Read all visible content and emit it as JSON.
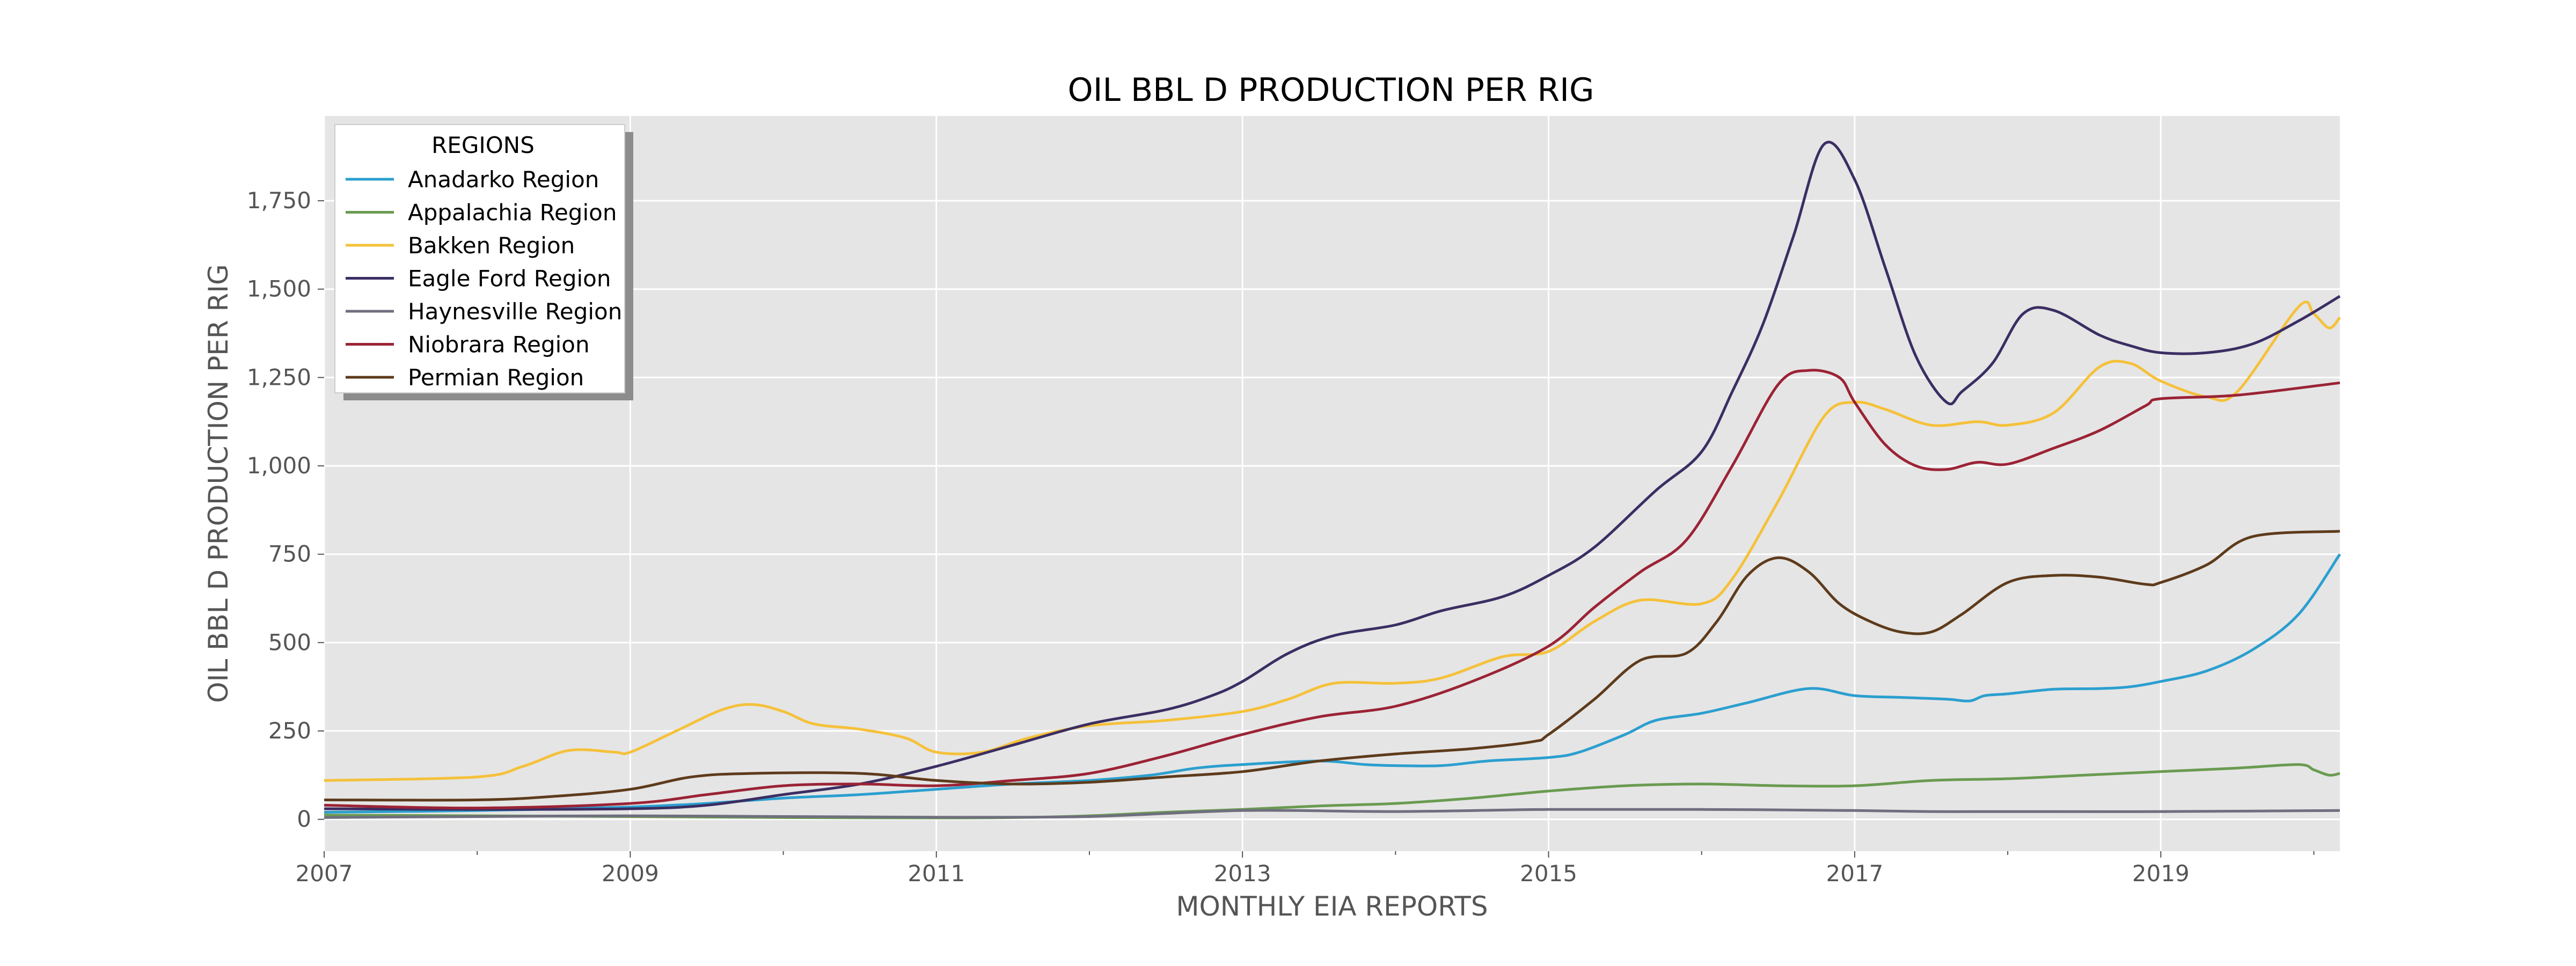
{
  "chart_data": {
    "type": "line",
    "title": "OIL BBL D PRODUCTION PER RIG",
    "xlabel": "MONTHLY EIA REPORTS",
    "ylabel": "OIL BBL D PRODUCTION PER RIG",
    "xlim": [
      2007.0,
      2020.17
    ],
    "ylim": [
      -90,
      1990
    ],
    "x_ticks": [
      2007,
      2009,
      2011,
      2013,
      2015,
      2017,
      2019
    ],
    "x_tick_labels": [
      "2007",
      "2009",
      "2011",
      "2013",
      "2015",
      "2017",
      "2019"
    ],
    "y_ticks": [
      0,
      250,
      500,
      750,
      1000,
      1250,
      1500,
      1750
    ],
    "y_tick_labels": [
      "0",
      "250",
      "500",
      "750",
      "1,000",
      "1,250",
      "1,500",
      "1,750"
    ],
    "grid": true,
    "legend_title": "REGIONS",
    "legend_position": "upper-left",
    "background": "#e5e5e5",
    "series": [
      {
        "name": "Anadarko Region",
        "color": "#2b9fcf",
        "points": [
          [
            2007,
            20
          ],
          [
            2008,
            25
          ],
          [
            2009,
            35
          ],
          [
            2009.5,
            45
          ],
          [
            2010,
            60
          ],
          [
            2010.5,
            70
          ],
          [
            2011,
            85
          ],
          [
            2011.5,
            100
          ],
          [
            2012,
            110
          ],
          [
            2012.4,
            125
          ],
          [
            2012.7,
            145
          ],
          [
            2013,
            155
          ],
          [
            2013.5,
            165
          ],
          [
            2013.8,
            155
          ],
          [
            2014,
            152
          ],
          [
            2014.3,
            152
          ],
          [
            2014.6,
            165
          ],
          [
            2015,
            175
          ],
          [
            2015.2,
            190
          ],
          [
            2015.5,
            240
          ],
          [
            2015.7,
            280
          ],
          [
            2016,
            300
          ],
          [
            2016.3,
            330
          ],
          [
            2016.7,
            370
          ],
          [
            2017,
            350
          ],
          [
            2017.3,
            345
          ],
          [
            2017.6,
            340
          ],
          [
            2017.75,
            335
          ],
          [
            2017.85,
            350
          ],
          [
            2018,
            355
          ],
          [
            2018.3,
            368
          ],
          [
            2018.6,
            370
          ],
          [
            2018.8,
            375
          ],
          [
            2019,
            390
          ],
          [
            2019.3,
            420
          ],
          [
            2019.6,
            480
          ],
          [
            2019.9,
            580
          ],
          [
            2020.17,
            750
          ]
        ]
      },
      {
        "name": "Appalachia Region",
        "color": "#6a9b50",
        "points": [
          [
            2007,
            12
          ],
          [
            2008,
            10
          ],
          [
            2009,
            8
          ],
          [
            2010,
            5
          ],
          [
            2011,
            4
          ],
          [
            2011.5,
            5
          ],
          [
            2012,
            10
          ],
          [
            2012.5,
            20
          ],
          [
            2013,
            28
          ],
          [
            2013.5,
            38
          ],
          [
            2014,
            45
          ],
          [
            2014.5,
            60
          ],
          [
            2015,
            80
          ],
          [
            2015.5,
            95
          ],
          [
            2016,
            100
          ],
          [
            2016.5,
            95
          ],
          [
            2017,
            95
          ],
          [
            2017.5,
            110
          ],
          [
            2018,
            115
          ],
          [
            2018.5,
            125
          ],
          [
            2019,
            135
          ],
          [
            2019.5,
            145
          ],
          [
            2019.9,
            155
          ],
          [
            2020,
            140
          ],
          [
            2020.1,
            125
          ],
          [
            2020.17,
            130
          ]
        ]
      },
      {
        "name": "Bakken Region",
        "color": "#f5c13a",
        "points": [
          [
            2007,
            110
          ],
          [
            2008,
            120
          ],
          [
            2008.3,
            150
          ],
          [
            2008.6,
            195
          ],
          [
            2008.9,
            190
          ],
          [
            2009,
            190
          ],
          [
            2009.3,
            250
          ],
          [
            2009.6,
            310
          ],
          [
            2009.8,
            325
          ],
          [
            2010,
            305
          ],
          [
            2010.2,
            270
          ],
          [
            2010.5,
            255
          ],
          [
            2010.8,
            230
          ],
          [
            2011,
            190
          ],
          [
            2011.3,
            190
          ],
          [
            2011.6,
            230
          ],
          [
            2012,
            265
          ],
          [
            2012.5,
            280
          ],
          [
            2013,
            305
          ],
          [
            2013.3,
            340
          ],
          [
            2013.6,
            385
          ],
          [
            2014,
            385
          ],
          [
            2014.3,
            400
          ],
          [
            2014.7,
            460
          ],
          [
            2015,
            475
          ],
          [
            2015.3,
            560
          ],
          [
            2015.6,
            620
          ],
          [
            2016,
            610
          ],
          [
            2016.2,
            680
          ],
          [
            2016.5,
            900
          ],
          [
            2016.8,
            1140
          ],
          [
            2017,
            1180
          ],
          [
            2017.2,
            1160
          ],
          [
            2017.5,
            1115
          ],
          [
            2017.8,
            1125
          ],
          [
            2018,
            1115
          ],
          [
            2018.3,
            1150
          ],
          [
            2018.6,
            1280
          ],
          [
            2018.8,
            1290
          ],
          [
            2019,
            1240
          ],
          [
            2019.3,
            1195
          ],
          [
            2019.5,
            1210
          ],
          [
            2019.9,
            1450
          ],
          [
            2020,
            1430
          ],
          [
            2020.1,
            1390
          ],
          [
            2020.17,
            1420
          ]
        ]
      },
      {
        "name": "Eagle Ford Region",
        "color": "#3b2e63",
        "points": [
          [
            2007,
            30
          ],
          [
            2008,
            28
          ],
          [
            2009,
            30
          ],
          [
            2009.5,
            40
          ],
          [
            2010,
            70
          ],
          [
            2010.5,
            100
          ],
          [
            2011,
            150
          ],
          [
            2011.5,
            210
          ],
          [
            2012,
            270
          ],
          [
            2012.5,
            310
          ],
          [
            2012.8,
            350
          ],
          [
            2013,
            390
          ],
          [
            2013.3,
            470
          ],
          [
            2013.6,
            520
          ],
          [
            2014,
            550
          ],
          [
            2014.3,
            590
          ],
          [
            2014.7,
            630
          ],
          [
            2015,
            690
          ],
          [
            2015.3,
            770
          ],
          [
            2015.7,
            930
          ],
          [
            2016,
            1040
          ],
          [
            2016.2,
            1210
          ],
          [
            2016.4,
            1400
          ],
          [
            2016.6,
            1650
          ],
          [
            2016.8,
            1910
          ],
          [
            2017,
            1810
          ],
          [
            2017.2,
            1560
          ],
          [
            2017.4,
            1310
          ],
          [
            2017.6,
            1180
          ],
          [
            2017.7,
            1210
          ],
          [
            2017.9,
            1290
          ],
          [
            2018.1,
            1430
          ],
          [
            2018.3,
            1440
          ],
          [
            2018.6,
            1370
          ],
          [
            2018.8,
            1340
          ],
          [
            2019,
            1320
          ],
          [
            2019.3,
            1320
          ],
          [
            2019.6,
            1345
          ],
          [
            2019.9,
            1410
          ],
          [
            2020.17,
            1480
          ]
        ]
      },
      {
        "name": "Haynesville Region",
        "color": "#6f6f7f",
        "points": [
          [
            2007,
            5
          ],
          [
            2008,
            8
          ],
          [
            2009,
            10
          ],
          [
            2010,
            8
          ],
          [
            2011,
            6
          ],
          [
            2012,
            8
          ],
          [
            2013,
            25
          ],
          [
            2014,
            22
          ],
          [
            2015,
            28
          ],
          [
            2016,
            28
          ],
          [
            2017,
            25
          ],
          [
            2017.5,
            22
          ],
          [
            2018,
            22
          ],
          [
            2019,
            22
          ],
          [
            2020.17,
            25
          ]
        ]
      },
      {
        "name": "Niobrara Region",
        "color": "#9b2335",
        "points": [
          [
            2007,
            40
          ],
          [
            2008,
            32
          ],
          [
            2009,
            45
          ],
          [
            2009.5,
            70
          ],
          [
            2010,
            95
          ],
          [
            2010.5,
            100
          ],
          [
            2011,
            95
          ],
          [
            2011.5,
            110
          ],
          [
            2012,
            130
          ],
          [
            2012.5,
            180
          ],
          [
            2013,
            240
          ],
          [
            2013.5,
            290
          ],
          [
            2014,
            320
          ],
          [
            2014.5,
            390
          ],
          [
            2015,
            490
          ],
          [
            2015.3,
            600
          ],
          [
            2015.6,
            700
          ],
          [
            2015.9,
            790
          ],
          [
            2016.2,
            1000
          ],
          [
            2016.5,
            1230
          ],
          [
            2016.7,
            1270
          ],
          [
            2016.9,
            1250
          ],
          [
            2017,
            1180
          ],
          [
            2017.2,
            1060
          ],
          [
            2017.4,
            1000
          ],
          [
            2017.6,
            990
          ],
          [
            2017.8,
            1010
          ],
          [
            2018,
            1005
          ],
          [
            2018.3,
            1050
          ],
          [
            2018.6,
            1100
          ],
          [
            2018.9,
            1170
          ],
          [
            2019,
            1190
          ],
          [
            2019.5,
            1200
          ],
          [
            2020.17,
            1235
          ]
        ]
      },
      {
        "name": "Permian Region",
        "color": "#5e3b1c",
        "points": [
          [
            2007,
            55
          ],
          [
            2008,
            55
          ],
          [
            2008.5,
            65
          ],
          [
            2009,
            85
          ],
          [
            2009.4,
            120
          ],
          [
            2009.8,
            130
          ],
          [
            2010.5,
            130
          ],
          [
            2011,
            110
          ],
          [
            2011.5,
            100
          ],
          [
            2012,
            105
          ],
          [
            2012.5,
            120
          ],
          [
            2013,
            135
          ],
          [
            2013.5,
            165
          ],
          [
            2014,
            185
          ],
          [
            2014.5,
            200
          ],
          [
            2014.9,
            220
          ],
          [
            2015,
            240
          ],
          [
            2015.3,
            340
          ],
          [
            2015.6,
            450
          ],
          [
            2015.9,
            470
          ],
          [
            2016.1,
            560
          ],
          [
            2016.3,
            690
          ],
          [
            2016.5,
            740
          ],
          [
            2016.7,
            700
          ],
          [
            2016.9,
            610
          ],
          [
            2017.1,
            560
          ],
          [
            2017.3,
            530
          ],
          [
            2017.5,
            530
          ],
          [
            2017.7,
            580
          ],
          [
            2018,
            670
          ],
          [
            2018.3,
            690
          ],
          [
            2018.6,
            685
          ],
          [
            2018.9,
            665
          ],
          [
            2019,
            670
          ],
          [
            2019.3,
            720
          ],
          [
            2019.6,
            800
          ],
          [
            2020.17,
            815
          ]
        ]
      }
    ]
  }
}
